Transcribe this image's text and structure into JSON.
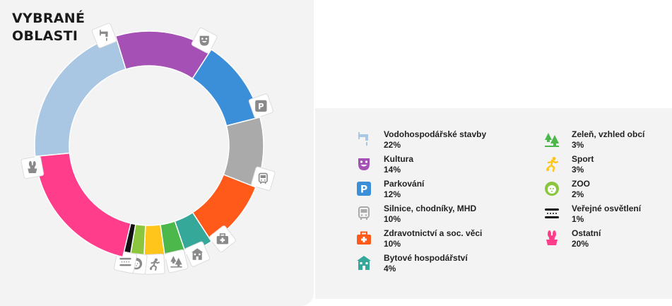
{
  "title": {
    "line1": "VYBRANÉ",
    "line2": "OBLASTI"
  },
  "chart_data": {
    "type": "pie",
    "style": "donut",
    "categories": [
      "Kultura",
      "Parkování",
      "Silnice, chodníky, MHD",
      "Zdravotnictví a soc. věci",
      "Bytové hospodářství",
      "Zeleň, vzhled obcí",
      "Sport",
      "ZOO",
      "Veřejné osvětlení",
      "Ostatní",
      "Vodohospodářské stavby"
    ],
    "values": [
      14,
      12,
      10,
      10,
      4,
      3,
      3,
      2,
      1,
      20,
      22
    ],
    "value_labels": [
      "14%",
      "12%",
      "10%",
      "10%",
      "4%",
      "3%",
      "3%",
      "2%",
      "1%",
      "20%",
      "22%"
    ],
    "colors": [
      "#a450b4",
      "#3b8fd9",
      "#aaaaaa",
      "#ff5a1a",
      "#35a89a",
      "#4cb84c",
      "#ffc51a",
      "#8cc63f",
      "#111111",
      "#ff3d8b",
      "#a9c6e3"
    ],
    "icons": [
      "theater-mask-icon",
      "parking-icon",
      "bus-icon",
      "first-aid-icon",
      "housing-icon",
      "trees-icon",
      "runner-icon",
      "lion-icon",
      "street-light-icon",
      "rabbit-hat-icon",
      "water-tap-icon"
    ],
    "legend_position": "right"
  },
  "legend": {
    "left": [
      {
        "label": "Vodohospodářské stavby",
        "value": "22%",
        "icon": "water-tap-icon",
        "color": "#a9c6e3"
      },
      {
        "label": "Kultura",
        "value": "14%",
        "icon": "theater-mask-icon",
        "color": "#a450b4"
      },
      {
        "label": "Parkování",
        "value": "12%",
        "icon": "parking-icon",
        "color": "#3b8fd9"
      },
      {
        "label": "Silnice, chodníky, MHD",
        "value": "10%",
        "icon": "bus-icon",
        "color": "#aaaaaa"
      },
      {
        "label": "Zdravotnictví a soc. věci",
        "value": "10%",
        "icon": "first-aid-icon",
        "color": "#ff5a1a"
      },
      {
        "label": "Bytové hospodářství",
        "value": "4%",
        "icon": "housing-icon",
        "color": "#35a89a"
      }
    ],
    "right": [
      {
        "label": "Zeleň, vzhled obcí",
        "value": "3%",
        "icon": "trees-icon",
        "color": "#4cb84c"
      },
      {
        "label": "Sport",
        "value": "3%",
        "icon": "runner-icon",
        "color": "#ffc51a"
      },
      {
        "label": "ZOO",
        "value": "2%",
        "icon": "lion-icon",
        "color": "#8cc63f"
      },
      {
        "label": "Veřejné osvětlení",
        "value": "1%",
        "icon": "street-light-icon",
        "color": "#111111"
      },
      {
        "label": "Ostatní",
        "value": "20%",
        "icon": "rabbit-hat-icon",
        "color": "#ff3d8b"
      }
    ]
  }
}
